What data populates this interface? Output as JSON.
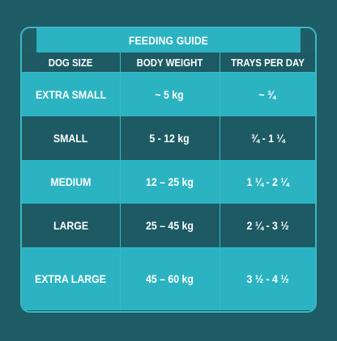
{
  "title": "FEEDING GUIDE",
  "columns": [
    "DOG SIZE",
    "BODY WEIGHT",
    "TRAYS PER DAY"
  ],
  "rows": [
    {
      "size": "EXTRA SMALL",
      "weight": "~ 5 kg",
      "trays": "~ ¾"
    },
    {
      "size": "SMALL",
      "weight": "5 - 12 kg",
      "trays": "¾ - 1 ¼"
    },
    {
      "size": "MEDIUM",
      "weight": "12 – 25 kg",
      "trays": "1 ¼ - 2 ¼"
    },
    {
      "size": "LARGE",
      "weight": "25 – 45 kg",
      "trays": "2 ¼ - 3 ½"
    },
    {
      "size": "EXTRA LARGE",
      "weight": "45 – 60 kg",
      "trays": "3 ½ - 4 ½"
    }
  ],
  "colors": {
    "background": "#1e5c66",
    "light_row": "#2cb3c2",
    "dark_row": "#1d5a64",
    "border": "#3bb8c4",
    "text": "#ffffff"
  }
}
